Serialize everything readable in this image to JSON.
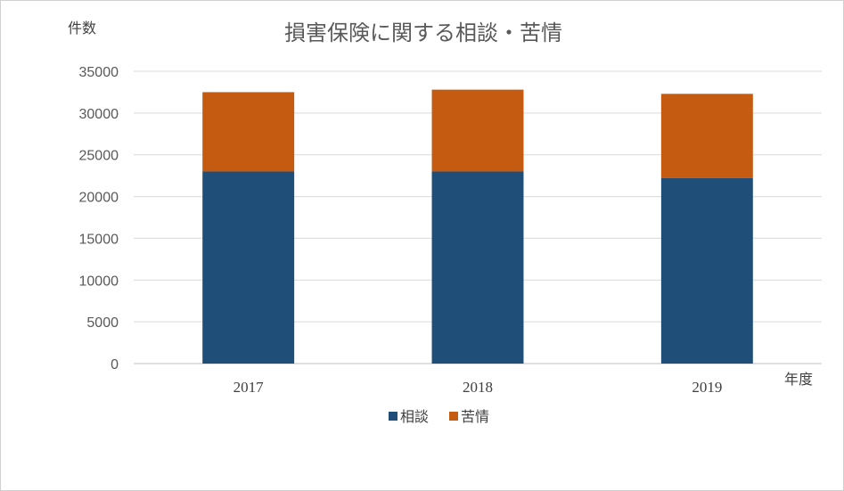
{
  "chart_data": {
    "type": "bar",
    "stacked": true,
    "title": "損害保険に関する相談・苦情",
    "ylabel": "件数",
    "xlabel": "年度",
    "categories": [
      "2017",
      "2018",
      "2019"
    ],
    "series": [
      {
        "name": "相談",
        "color": "#1f4e79",
        "values": [
          23000,
          23000,
          22200
        ]
      },
      {
        "name": "苦情",
        "color": "#c55a11",
        "values": [
          9500,
          9800,
          10100
        ]
      }
    ],
    "ylim": [
      0,
      35000
    ],
    "yticks": [
      0,
      5000,
      10000,
      15000,
      20000,
      25000,
      30000,
      35000
    ],
    "grid": true,
    "legend_position": "bottom"
  }
}
